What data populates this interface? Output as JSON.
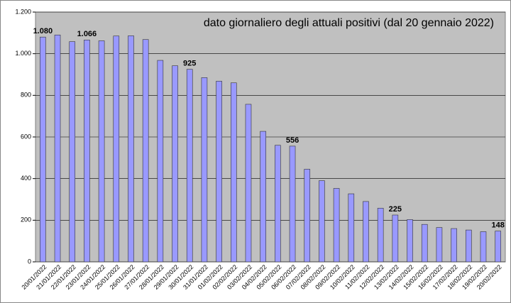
{
  "chart_data": {
    "type": "bar",
    "title": "dato giornaliero degli attuali positivi (dal 20 gennaio 2022)",
    "categories": [
      "20/01/2022",
      "21/01/2022",
      "22/01/2022",
      "23/01/2022",
      "24/01/2022",
      "25/01/2022",
      "26/01/2022",
      "27/01/2022",
      "28/01/2022",
      "29/01/2022",
      "30/01/2022",
      "31/01/2022",
      "01/02/2022",
      "02/02/2022",
      "03/02/2022",
      "04/02/2022",
      "05/02/2022",
      "06/02/2022",
      "07/02/2022",
      "08/02/2022",
      "09/02/2022",
      "10/02/2022",
      "11/02/2022",
      "12/02/2022",
      "13/02/2022",
      "14/02/2022",
      "15/02/2022",
      "16/02/2022",
      "17/02/2022",
      "18/02/2022",
      "19/02/2022",
      "20/02/2022"
    ],
    "values": [
      1080,
      1090,
      1058,
      1066,
      1062,
      1085,
      1086,
      1068,
      968,
      942,
      925,
      885,
      868,
      860,
      757,
      627,
      560,
      556,
      445,
      390,
      353,
      327,
      290,
      258,
      225,
      203,
      180,
      165,
      160,
      153,
      145,
      148
    ],
    "value_labels": [
      "1.080",
      null,
      null,
      "1.066",
      null,
      null,
      null,
      null,
      null,
      null,
      "925",
      null,
      null,
      null,
      null,
      null,
      null,
      "556",
      null,
      null,
      null,
      null,
      null,
      null,
      "225",
      null,
      null,
      null,
      null,
      null,
      null,
      "148"
    ],
    "color": "#9999ff",
    "ylim": [
      0,
      1200
    ],
    "yticks": [
      0,
      200,
      400,
      600,
      800,
      {
        "value": 1000,
        "label": "1.000"
      },
      {
        "value": 1200,
        "label": "1.200"
      }
    ],
    "grid": true
  }
}
